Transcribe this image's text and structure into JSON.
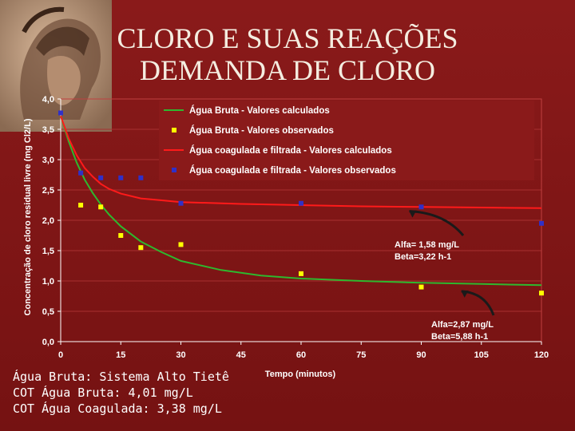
{
  "slide": {
    "title_line1": "CLORO E SUAS REAÇÕES",
    "title_line2": "DEMANDA DE CLORO",
    "logo_icon": "helmeted-head-medallion-icon",
    "footer_lines": [
      "Água Bruta: Sistema Alto Tietê",
      "COT Água Bruta: 4,01 mg/L",
      "COT Água Coagulada: 3,38 mg/L"
    ]
  },
  "chart_data": {
    "type": "line",
    "xlabel": "Tempo (minutos)",
    "ylabel": "Concentração de cloro residual livre (mg Cl2/L)",
    "xlim": [
      0,
      120
    ],
    "ylim": [
      0,
      4.0
    ],
    "x_ticks": [
      "0",
      "15",
      "30",
      "45",
      "60",
      "75",
      "90",
      "105",
      "120"
    ],
    "y_ticks": [
      "0,0",
      "0,5",
      "1,0",
      "1,5",
      "2,0",
      "2,5",
      "3,0",
      "3,5",
      "4,0"
    ],
    "legend_position": "top",
    "series": [
      {
        "name": "Água Bruta - Valores calculados",
        "kind": "line",
        "color": "#2eb82e",
        "points": [
          [
            0,
            3.72
          ],
          [
            2,
            3.3
          ],
          [
            4,
            2.95
          ],
          [
            6,
            2.67
          ],
          [
            8,
            2.45
          ],
          [
            10,
            2.26
          ],
          [
            12,
            2.1
          ],
          [
            15,
            1.9
          ],
          [
            20,
            1.65
          ],
          [
            25,
            1.48
          ],
          [
            30,
            1.33
          ],
          [
            40,
            1.18
          ],
          [
            50,
            1.09
          ],
          [
            60,
            1.04
          ],
          [
            75,
            1.0
          ],
          [
            90,
            0.97
          ],
          [
            105,
            0.95
          ],
          [
            120,
            0.93
          ]
        ]
      },
      {
        "name": "Água Bruta - Valores observados",
        "kind": "marker",
        "color": "#ffff00",
        "points": [
          [
            5,
            2.25
          ],
          [
            10,
            2.22
          ],
          [
            15,
            1.75
          ],
          [
            20,
            1.55
          ],
          [
            30,
            1.6
          ],
          [
            60,
            1.12
          ],
          [
            90,
            0.9
          ],
          [
            120,
            0.8
          ]
        ]
      },
      {
        "name": "Água coagulada e filtrada - Valores calculados",
        "kind": "line",
        "color": "#ff1a1a",
        "points": [
          [
            0,
            3.72
          ],
          [
            2,
            3.35
          ],
          [
            4,
            3.07
          ],
          [
            6,
            2.86
          ],
          [
            8,
            2.72
          ],
          [
            10,
            2.6
          ],
          [
            12,
            2.52
          ],
          [
            15,
            2.44
          ],
          [
            20,
            2.36
          ],
          [
            25,
            2.33
          ],
          [
            30,
            2.3
          ],
          [
            45,
            2.27
          ],
          [
            60,
            2.25
          ],
          [
            75,
            2.23
          ],
          [
            90,
            2.22
          ],
          [
            105,
            2.21
          ],
          [
            120,
            2.2
          ]
        ]
      },
      {
        "name": "Água coagulada e filtrada - Valores observados",
        "kind": "marker",
        "color": "#3030c8",
        "points": [
          [
            0,
            3.77
          ],
          [
            5,
            2.78
          ],
          [
            10,
            2.7
          ],
          [
            15,
            2.7
          ],
          [
            20,
            2.7
          ],
          [
            30,
            2.28
          ],
          [
            60,
            2.28
          ],
          [
            90,
            2.22
          ],
          [
            120,
            1.95
          ]
        ]
      }
    ],
    "annotations": [
      {
        "lines": [
          "Alfa= 1,58 mg/L",
          "Beta=3,22 h-1"
        ],
        "arrow_to": [
          87,
          2.15
        ]
      },
      {
        "lines": [
          "Alfa=2,87 mg/L",
          "Beta=5,88 h-1"
        ],
        "arrow_to": [
          100,
          0.83
        ]
      }
    ]
  }
}
